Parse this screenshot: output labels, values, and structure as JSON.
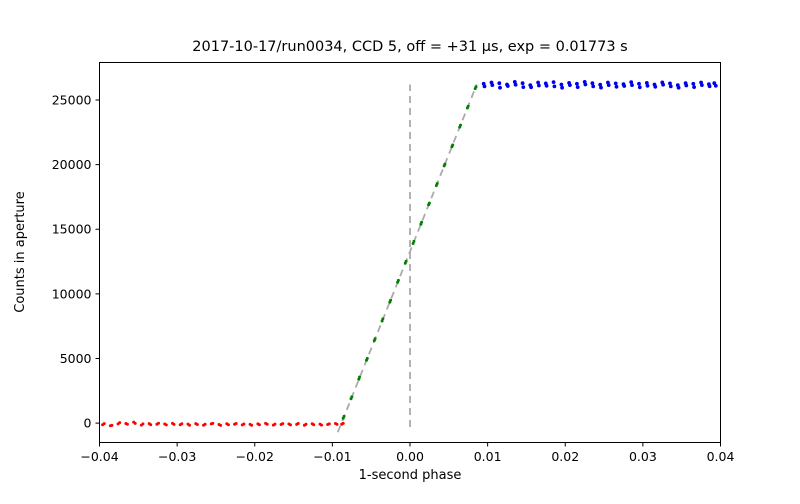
{
  "chart_data": {
    "type": "scatter",
    "title": "2017-10-17/run0034, CCD 5, off = +31 μs, exp = 0.01773 s",
    "xlabel": "1-second phase",
    "ylabel": "Counts in aperture",
    "xlim": [
      -0.04,
      0.04
    ],
    "ylim": [
      -1500,
      27900
    ],
    "grid": false,
    "legend": null,
    "xticks": {
      "values": [
        -0.04,
        -0.03,
        -0.02,
        -0.01,
        0.0,
        0.01,
        0.02,
        0.03,
        0.04
      ],
      "labels": [
        "−0.04",
        "−0.03",
        "−0.02",
        "−0.01",
        "0.00",
        "0.01",
        "0.02",
        "0.03",
        "0.04"
      ]
    },
    "yticks": {
      "values": [
        0,
        5000,
        10000,
        15000,
        20000,
        25000
      ],
      "labels": [
        "0",
        "5000",
        "10000",
        "15000",
        "20000",
        "25000"
      ]
    },
    "vline": {
      "x": 0,
      "y": [
        -300,
        26200
      ],
      "color": "#aaaaaa",
      "style": "dashed"
    },
    "fit_line": {
      "x": [
        -0.0093,
        0.0086
      ],
      "y": [
        -700,
        26200
      ],
      "color": "#aaaaaa",
      "style": "dashed"
    },
    "series": [
      {
        "name": "baseline",
        "color": "#ff0000",
        "marker": "dot",
        "size": 1.5,
        "points": [
          [
            -0.0396,
            -120
          ],
          [
            -0.0394,
            -40
          ],
          [
            -0.0386,
            -200
          ],
          [
            -0.0384,
            -180
          ],
          [
            -0.0376,
            -60
          ],
          [
            -0.0374,
            40
          ],
          [
            -0.0366,
            -30
          ],
          [
            -0.0364,
            -90
          ],
          [
            -0.0356,
            80
          ],
          [
            -0.0354,
            -20
          ],
          [
            -0.0346,
            -150
          ],
          [
            -0.0344,
            -60
          ],
          [
            -0.0336,
            -40
          ],
          [
            -0.0334,
            -130
          ],
          [
            -0.0326,
            -90
          ],
          [
            -0.0324,
            -10
          ],
          [
            -0.0316,
            -70
          ],
          [
            -0.0314,
            -140
          ],
          [
            -0.0306,
            -20
          ],
          [
            -0.0304,
            -100
          ],
          [
            -0.0296,
            -130
          ],
          [
            -0.0294,
            -50
          ],
          [
            -0.0286,
            -80
          ],
          [
            -0.0284,
            -160
          ],
          [
            -0.0276,
            -40
          ],
          [
            -0.0274,
            -110
          ],
          [
            -0.0266,
            -170
          ],
          [
            -0.0264,
            -90
          ],
          [
            -0.0256,
            -60
          ],
          [
            -0.0254,
            -20
          ],
          [
            -0.0246,
            -110
          ],
          [
            -0.0244,
            -180
          ],
          [
            -0.0236,
            -50
          ],
          [
            -0.0234,
            -120
          ],
          [
            -0.0226,
            -90
          ],
          [
            -0.0224,
            -30
          ],
          [
            -0.0216,
            -140
          ],
          [
            -0.0214,
            -70
          ],
          [
            -0.0206,
            -100
          ],
          [
            -0.0204,
            -170
          ],
          [
            -0.0196,
            -60
          ],
          [
            -0.0194,
            -130
          ],
          [
            -0.0186,
            -20
          ],
          [
            -0.0184,
            -90
          ],
          [
            -0.0176,
            -150
          ],
          [
            -0.0174,
            -80
          ],
          [
            -0.0166,
            -110
          ],
          [
            -0.0164,
            -40
          ],
          [
            -0.0156,
            -70
          ],
          [
            -0.0154,
            -140
          ],
          [
            -0.0146,
            -100
          ],
          [
            -0.0144,
            -30
          ],
          [
            -0.0136,
            -160
          ],
          [
            -0.0134,
            -90
          ],
          [
            -0.0126,
            -50
          ],
          [
            -0.0124,
            -120
          ],
          [
            -0.0116,
            -80
          ],
          [
            -0.0114,
            -150
          ],
          [
            -0.0106,
            -110
          ],
          [
            -0.0104,
            -60
          ],
          [
            -0.0096,
            -30
          ],
          [
            -0.0094,
            -100
          ],
          [
            -0.0088,
            -90
          ],
          [
            -0.0086,
            -20
          ]
        ]
      },
      {
        "name": "ramp",
        "color": "#008000",
        "marker": "dot",
        "size": 1.5,
        "points": [
          [
            -0.0086,
            380
          ],
          [
            -0.0085,
            520
          ],
          [
            -0.0076,
            1880
          ],
          [
            -0.0075,
            2030
          ],
          [
            -0.0066,
            3400
          ],
          [
            -0.0065,
            3560
          ],
          [
            -0.0056,
            4870
          ],
          [
            -0.0055,
            5010
          ],
          [
            -0.0046,
            6380
          ],
          [
            -0.0045,
            6520
          ],
          [
            -0.0036,
            7900
          ],
          [
            -0.0035,
            8060
          ],
          [
            -0.0026,
            9360
          ],
          [
            -0.0025,
            9500
          ],
          [
            -0.0016,
            10900
          ],
          [
            -0.0015,
            11040
          ],
          [
            -0.0006,
            12380
          ],
          [
            -0.0005,
            12520
          ],
          [
            0.0004,
            13900
          ],
          [
            0.0005,
            14060
          ],
          [
            0.0014,
            15380
          ],
          [
            0.0015,
            15540
          ],
          [
            0.0024,
            16900
          ],
          [
            0.0025,
            17020
          ],
          [
            0.0034,
            18380
          ],
          [
            0.0035,
            18540
          ],
          [
            0.0044,
            19900
          ],
          [
            0.0045,
            20040
          ],
          [
            0.0054,
            21380
          ],
          [
            0.0055,
            21520
          ],
          [
            0.0064,
            22900
          ],
          [
            0.0065,
            23060
          ],
          [
            0.0074,
            24380
          ],
          [
            0.0075,
            24520
          ],
          [
            0.0084,
            25880
          ],
          [
            0.0085,
            26020
          ]
        ]
      },
      {
        "name": "plateau",
        "color": "#0000ee",
        "marker": "dot",
        "size": 1.9,
        "points": [
          [
            0.0095,
            26250
          ],
          [
            0.0096,
            26050
          ],
          [
            0.0105,
            26350
          ],
          [
            0.0106,
            26150
          ],
          [
            0.0115,
            26300
          ],
          [
            0.0116,
            25950
          ],
          [
            0.0125,
            26200
          ],
          [
            0.0126,
            26080
          ],
          [
            0.0135,
            26400
          ],
          [
            0.0136,
            26180
          ],
          [
            0.0145,
            26300
          ],
          [
            0.0146,
            26000
          ],
          [
            0.0155,
            26150
          ],
          [
            0.0156,
            25980
          ],
          [
            0.0165,
            26350
          ],
          [
            0.0166,
            26120
          ],
          [
            0.0175,
            26280
          ],
          [
            0.0176,
            26100
          ],
          [
            0.0185,
            26380
          ],
          [
            0.0186,
            26050
          ],
          [
            0.0195,
            26200
          ],
          [
            0.0196,
            25950
          ],
          [
            0.0205,
            26320
          ],
          [
            0.0206,
            26150
          ],
          [
            0.0215,
            26250
          ],
          [
            0.0216,
            26000
          ],
          [
            0.0225,
            26400
          ],
          [
            0.0226,
            26200
          ],
          [
            0.0235,
            26300
          ],
          [
            0.0236,
            26050
          ],
          [
            0.0245,
            26180
          ],
          [
            0.0246,
            25960
          ],
          [
            0.0255,
            26350
          ],
          [
            0.0256,
            26150
          ],
          [
            0.0265,
            26280
          ],
          [
            0.0266,
            26020
          ],
          [
            0.0275,
            26220
          ],
          [
            0.0276,
            26080
          ],
          [
            0.0285,
            26380
          ],
          [
            0.0286,
            26150
          ],
          [
            0.0295,
            26250
          ],
          [
            0.0296,
            25980
          ],
          [
            0.0305,
            26320
          ],
          [
            0.0306,
            26100
          ],
          [
            0.0315,
            26200
          ],
          [
            0.0316,
            26020
          ],
          [
            0.0325,
            26360
          ],
          [
            0.0326,
            26180
          ],
          [
            0.0335,
            26280
          ],
          [
            0.0336,
            26050
          ],
          [
            0.0345,
            26150
          ],
          [
            0.0346,
            25950
          ],
          [
            0.0355,
            26300
          ],
          [
            0.0356,
            26120
          ],
          [
            0.0365,
            26250
          ],
          [
            0.0366,
            26000
          ],
          [
            0.0375,
            26350
          ],
          [
            0.0376,
            26150
          ],
          [
            0.0385,
            26220
          ],
          [
            0.0386,
            26060
          ],
          [
            0.0392,
            26300
          ],
          [
            0.0394,
            26100
          ]
        ]
      }
    ]
  }
}
